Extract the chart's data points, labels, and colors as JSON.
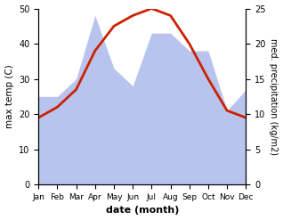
{
  "months": [
    "Jan",
    "Feb",
    "Mar",
    "Apr",
    "May",
    "Jun",
    "Jul",
    "Aug",
    "Sep",
    "Oct",
    "Nov",
    "Dec"
  ],
  "month_indices": [
    0,
    1,
    2,
    3,
    4,
    5,
    6,
    7,
    8,
    9,
    10,
    11
  ],
  "temperature": [
    19,
    22,
    27,
    38,
    45,
    48,
    50,
    48,
    40,
    30,
    21,
    19
  ],
  "precipitation_kg": [
    12.5,
    12.5,
    15,
    24,
    16.5,
    14,
    21.5,
    21.5,
    19,
    19,
    10.5,
    13.5
  ],
  "temp_color": "#cc2200",
  "precip_color": "#b8c4ee",
  "left_ylabel": "max temp (C)",
  "right_ylabel": "med. precipitation (kg/m2)",
  "xlabel": "date (month)",
  "ylim_left": [
    0,
    50
  ],
  "ylim_right": [
    0,
    25
  ],
  "background_color": "#ffffff",
  "temp_linewidth": 2.0
}
